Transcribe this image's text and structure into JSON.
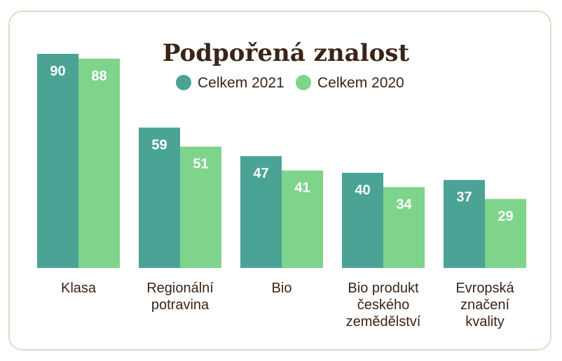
{
  "chart_data": {
    "type": "bar",
    "title": "Podpořená znalost",
    "categories": [
      [
        "Klasa"
      ],
      [
        "Regionální",
        "potravina"
      ],
      [
        "Bio"
      ],
      [
        "Bio produkt",
        "českého",
        "zemědělství"
      ],
      [
        "Evropská",
        "značení",
        "kvality"
      ]
    ],
    "series": [
      {
        "name": "Celkem 2021",
        "color": "#4aa394",
        "values": [
          90,
          59,
          47,
          40,
          37
        ]
      },
      {
        "name": "Celkem 2020",
        "color": "#7ed48b",
        "values": [
          88,
          51,
          41,
          34,
          29
        ]
      }
    ],
    "ylim": [
      0,
      90
    ],
    "legend": "top-center",
    "grid": false,
    "xlabel": "",
    "ylabel": ""
  }
}
